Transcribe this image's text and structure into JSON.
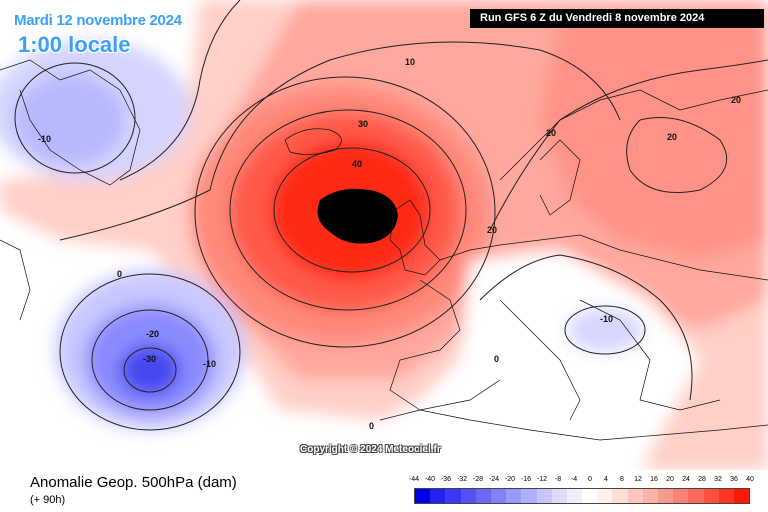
{
  "header": {
    "date": "Mardi 12 novembre 2024",
    "time": "1:00 locale",
    "run": "Run GFS 6 Z du Vendredi 8 novembre 2024"
  },
  "copyright": "Copyright © 2024 Meteociel.fr",
  "footer": {
    "title": "Anomalie Geop. 500hPa (dam)",
    "subtitle": "(+ 90h)"
  },
  "contour_labels": [
    "10",
    "30",
    "40",
    "20",
    "20",
    "20",
    "20",
    "-10",
    "0",
    "-20",
    "-30",
    "-10",
    "-10",
    "0",
    "0"
  ],
  "legend": {
    "values": [
      "-44",
      "-40",
      "-36",
      "-32",
      "-28",
      "-24",
      "-20",
      "-16",
      "-12",
      "-8",
      "-4",
      "0",
      "4",
      "8",
      "12",
      "16",
      "20",
      "24",
      "28",
      "32",
      "36",
      "40"
    ],
    "colors": [
      "#0000e8",
      "#2020f0",
      "#3a3af4",
      "#5252f6",
      "#6a6af7",
      "#8282f8",
      "#9a9afa",
      "#b0b0fb",
      "#c6c6fc",
      "#dcdcfd",
      "#eeeefe",
      "#ffffff",
      "#fff0ee",
      "#ffdcd8",
      "#ffc6c0",
      "#ffb0a8",
      "#ff9a90",
      "#ff8276",
      "#ff6a5c",
      "#ff5040",
      "#ff3424",
      "#ff1808"
    ]
  }
}
